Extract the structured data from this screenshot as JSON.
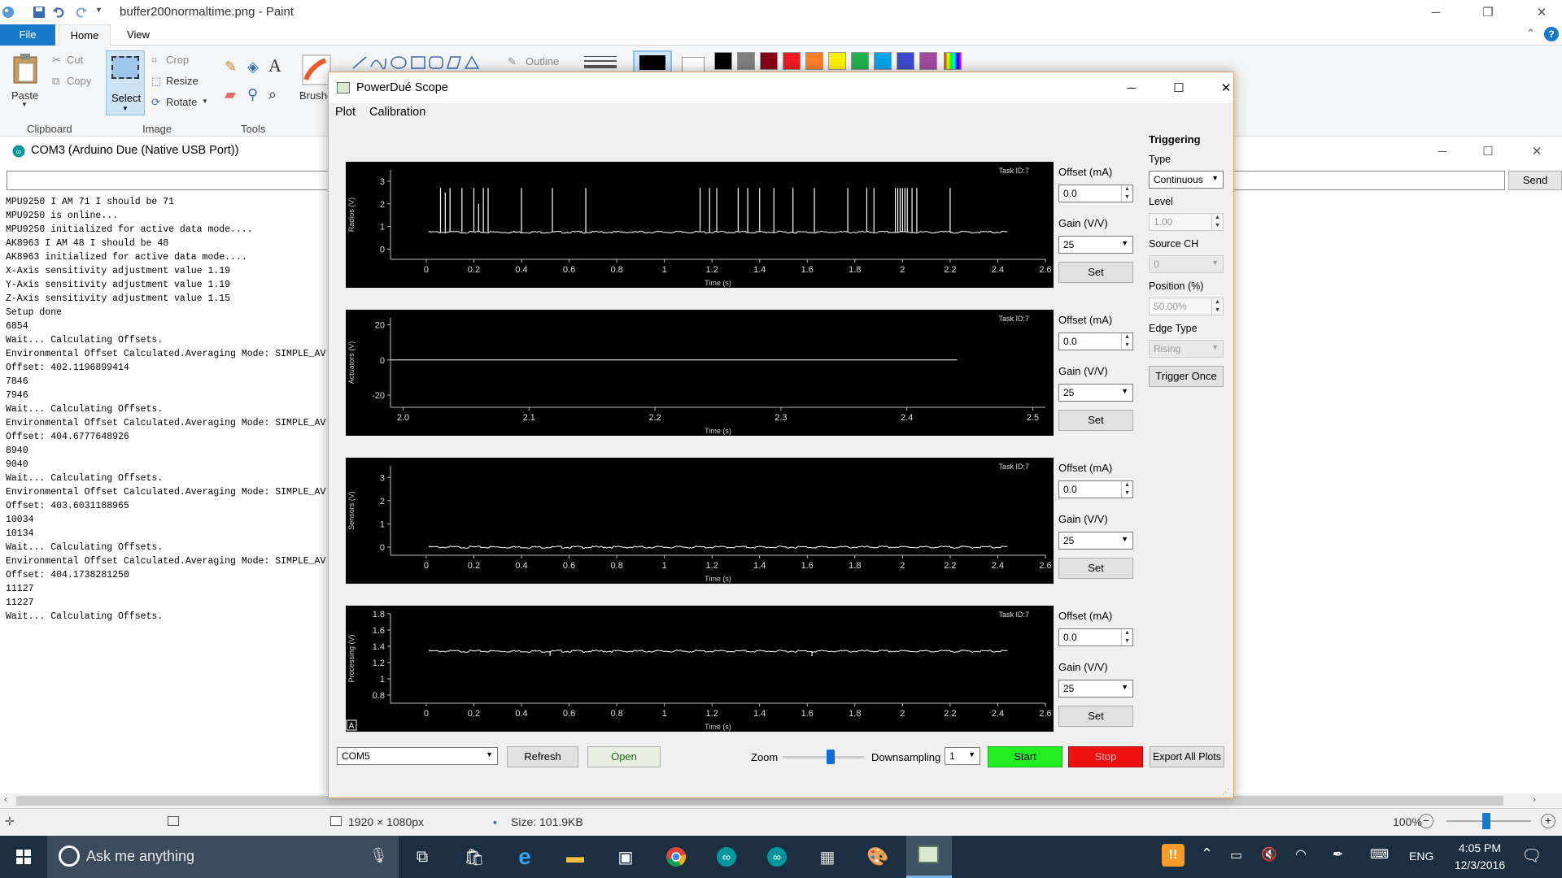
{
  "paint": {
    "title": "buffer200normaltime.png - Paint",
    "tabs": {
      "file": "File",
      "home": "Home",
      "view": "View"
    },
    "clipboard": {
      "paste": "Paste",
      "cut": "Cut",
      "copy": "Copy",
      "group": "Clipboard"
    },
    "image": {
      "select": "Select",
      "crop": "Crop",
      "resize": "Resize",
      "rotate": "Rotate",
      "group": "Image"
    },
    "tools": {
      "group": "Tools",
      "text_tool": "A"
    },
    "shapes": {
      "outline": "Outline"
    },
    "brushes": "Brushes",
    "palette": [
      "#000000",
      "#7f7f7f",
      "#880015",
      "#ed1c24",
      "#ff7f27",
      "#fff200",
      "#22b14c",
      "#00a2e8",
      "#3f48cc",
      "#a349a4"
    ],
    "status": {
      "dimensions": "1920 × 1080px",
      "size": "Size: 101.9KB",
      "zoom": "100%"
    }
  },
  "serial": {
    "title": "COM3 (Arduino Due (Native USB Port))",
    "input_value": "",
    "send_label": "Send",
    "lines": [
      "MPU9250 I AM 71 I should be 71",
      "MPU9250 is online...",
      "MPU9250 initialized for active data mode....",
      "AK8963 I AM 48 I should be 48",
      "AK8963 initialized for active data mode....",
      "X-Axis sensitivity adjustment value 1.19",
      "Y-Axis sensitivity adjustment value 1.19",
      "Z-Axis sensitivity adjustment value 1.15",
      "Setup done",
      "6854",
      "Wait... Calculating Offsets.",
      "Environmental Offset Calculated.Averaging Mode: SIMPLE_AV",
      "Offset: 402.1196899414",
      "7846",
      "7946",
      "Wait... Calculating Offsets.",
      "Environmental Offset Calculated.Averaging Mode: SIMPLE_AV",
      "Offset: 404.6777648926",
      "8940",
      "9040",
      "Wait... Calculating Offsets.",
      "Environmental Offset Calculated.Averaging Mode: SIMPLE_AV",
      "Offset: 403.6031188965",
      "10034",
      "10134",
      "Wait... Calculating Offsets.",
      "Environmental Offset Calculated.Averaging Mode: SIMPLE_AV",
      "Offset: 404.1738281250",
      "11127",
      "11227",
      "Wait... Calculating Offsets."
    ]
  },
  "scope": {
    "title": "PowerDué Scope",
    "menu": {
      "plot": "Plot",
      "calibration": "Calibration"
    },
    "plots": [
      {
        "ylabel": "Radios (V)",
        "task": "Task ID:7",
        "xlabel": "Time (s)",
        "offset_label": "Offset (mA)",
        "offset": "0.0",
        "gain_label": "Gain (V/V)",
        "gain": "25",
        "set": "Set"
      },
      {
        "ylabel": "Actuators (V)",
        "task": "Task ID:7",
        "xlabel": "Time (s)",
        "offset_label": "Offset (mA)",
        "offset": "0.0",
        "gain_label": "Gain (V/V)",
        "gain": "25",
        "set": "Set"
      },
      {
        "ylabel": "Sensors (V)",
        "task": "Task ID:7",
        "xlabel": "Time (s)",
        "offset_label": "Offset (mA)",
        "offset": "0.0",
        "gain_label": "Gain (V/V)",
        "gain": "25",
        "set": "Set"
      },
      {
        "ylabel": "Processing (V)",
        "task": "Task ID:7",
        "xlabel": "Time (s)",
        "offset_label": "Offset (mA)",
        "offset": "0.0",
        "gain_label": "Gain (V/V)",
        "gain": "25",
        "set": "Set",
        "corner": "A"
      }
    ],
    "triggering": {
      "heading": "Triggering",
      "type_label": "Type",
      "type": "Continuous",
      "level_label": "Level",
      "level": "1.00",
      "source_label": "Source CH",
      "source": "0",
      "position_label": "Position (%)",
      "position": "50.00%",
      "edge_label": "Edge Type",
      "edge": "Rising",
      "once": "Trigger Once"
    },
    "bottom": {
      "port": "COM5",
      "refresh": "Refresh",
      "open": "Open",
      "zoom_label": "Zoom",
      "zoom_level": 0.6,
      "downsampling_label": "Downsampling",
      "downsampling": "1",
      "start": "Start",
      "stop": "Stop",
      "export": "Export All Plots"
    }
  },
  "taskbar": {
    "search_placeholder": "Ask me anything",
    "lang": "ENG",
    "time": "4:05 PM",
    "date": "12/3/2016"
  },
  "chart_data": [
    {
      "type": "line",
      "ylabel": "Radios (V)",
      "xlabel": "Time (s)",
      "xlim": [
        -0.15,
        2.6
      ],
      "ylim": [
        -0.45,
        3.5
      ],
      "xticks": [
        "0",
        "0.2",
        "0.4",
        "0.6",
        "0.8",
        "1",
        "1.2",
        "1.4",
        "1.6",
        "1.8",
        "2",
        "2.2",
        "2.4",
        "2.6"
      ],
      "yticks": [
        "0",
        "1",
        "2",
        "3"
      ],
      "series": [
        {
          "baseline": 0.75,
          "x_range": [
            0.01,
            2.44
          ],
          "spikes": [
            {
              "x": 0.06,
              "y": 2.7
            },
            {
              "x": 0.08,
              "y": 2.5
            },
            {
              "x": 0.1,
              "y": 2.7
            },
            {
              "x": 0.15,
              "y": 2.7
            },
            {
              "x": 0.2,
              "y": 2.7
            },
            {
              "x": 0.22,
              "y": 2.0
            },
            {
              "x": 0.24,
              "y": 2.7
            },
            {
              "x": 0.26,
              "y": 2.7
            },
            {
              "x": 0.4,
              "y": 2.7
            },
            {
              "x": 0.53,
              "y": 2.7
            },
            {
              "x": 0.67,
              "y": 2.7
            },
            {
              "x": 1.15,
              "y": 2.7
            },
            {
              "x": 1.19,
              "y": 2.7
            },
            {
              "x": 1.22,
              "y": 2.7
            },
            {
              "x": 1.31,
              "y": 2.7
            },
            {
              "x": 1.35,
              "y": 2.7
            },
            {
              "x": 1.4,
              "y": 2.7
            },
            {
              "x": 1.46,
              "y": 2.7
            },
            {
              "x": 1.54,
              "y": 2.7
            },
            {
              "x": 1.63,
              "y": 2.7
            },
            {
              "x": 1.77,
              "y": 2.7
            },
            {
              "x": 1.85,
              "y": 2.7
            },
            {
              "x": 1.88,
              "y": 2.7
            },
            {
              "x": 1.97,
              "y": 2.7
            },
            {
              "x": 1.98,
              "y": 2.7
            },
            {
              "x": 1.99,
              "y": 2.7
            },
            {
              "x": 2.0,
              "y": 2.7
            },
            {
              "x": 2.01,
              "y": 2.7
            },
            {
              "x": 2.02,
              "y": 2.7
            },
            {
              "x": 2.04,
              "y": 2.7
            },
            {
              "x": 2.06,
              "y": 2.7
            },
            {
              "x": 2.2,
              "y": 2.7
            }
          ]
        }
      ]
    },
    {
      "type": "line",
      "ylabel": "Actuators (V)",
      "xlabel": "Time (s)",
      "xlim": [
        1.99,
        2.51
      ],
      "ylim": [
        -27,
        24
      ],
      "xticks": [
        "2.0",
        "2.1",
        "2.2",
        "2.3",
        "2.4",
        "2.5"
      ],
      "yticks": [
        "20",
        "0",
        "-20"
      ],
      "series": [
        {
          "x": [
            1.99,
            2.44
          ],
          "y": [
            0,
            0
          ]
        }
      ]
    },
    {
      "type": "line",
      "ylabel": "Sensors (V)",
      "xlabel": "Time (s)",
      "xlim": [
        -0.15,
        2.6
      ],
      "ylim": [
        -0.35,
        3.5
      ],
      "xticks": [
        "0",
        "0.2",
        "0.4",
        "0.6",
        "0.8",
        "1",
        "1.2",
        "1.4",
        "1.6",
        "1.8",
        "2",
        "2.2",
        "2.4",
        "2.6"
      ],
      "yticks": [
        "0",
        "1",
        "2",
        "3"
      ],
      "series": [
        {
          "baseline": 0.0,
          "x_range": [
            0.01,
            2.44
          ]
        }
      ]
    },
    {
      "type": "line",
      "ylabel": "Processing (V)",
      "xlabel": "Time (s)",
      "xlim": [
        -0.15,
        2.6
      ],
      "ylim": [
        0.7,
        1.8
      ],
      "xticks": [
        "0",
        "0.2",
        "0.4",
        "0.6",
        "0.8",
        "1",
        "1.2",
        "1.4",
        "1.6",
        "1.8",
        "2",
        "2.2",
        "2.4",
        "2.6"
      ],
      "yticks": [
        "0.8",
        "1",
        "1.2",
        "1.4",
        "1.6",
        "1.8"
      ],
      "series": [
        {
          "baseline": 1.34,
          "x_range": [
            0.01,
            2.44
          ],
          "dips": [
            {
              "x": 0.52,
              "y": 1.28
            },
            {
              "x": 1.62,
              "y": 1.28
            }
          ]
        }
      ]
    }
  ]
}
